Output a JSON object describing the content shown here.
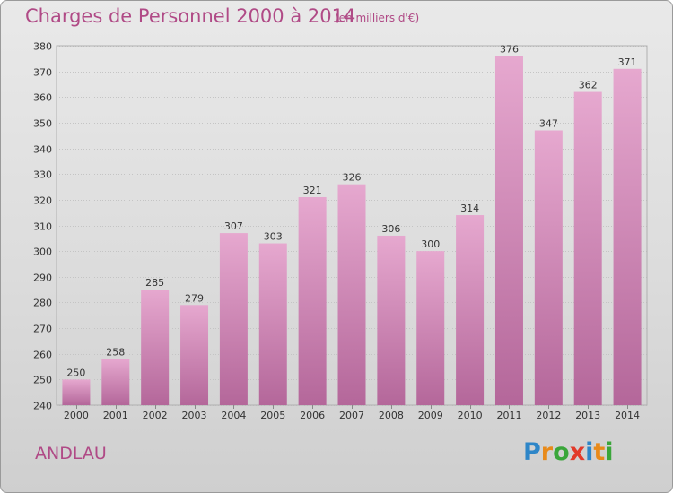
{
  "header": {
    "title": "Charges de Personnel 2000 à 2014",
    "subtitle": "(en milliers d'€)"
  },
  "footer": {
    "place": "ANDLAU",
    "logo": {
      "text": "Proxiti",
      "letters": [
        {
          "ch": "P",
          "color": "#2e86c8"
        },
        {
          "ch": "r",
          "color": "#e88a1a"
        },
        {
          "ch": "o",
          "color": "#3aa63a"
        },
        {
          "ch": "x",
          "color": "#e23a2a"
        },
        {
          "ch": "i",
          "color": "#2e86c8"
        },
        {
          "ch": "t",
          "color": "#e88a1a"
        },
        {
          "ch": "i",
          "color": "#3aa63a"
        }
      ]
    }
  },
  "chart_data": {
    "type": "bar",
    "title": "Charges de Personnel 2000 à 2014",
    "subtitle": "(en milliers d'€)",
    "categories": [
      "2000",
      "2001",
      "2002",
      "2003",
      "2004",
      "2005",
      "2006",
      "2007",
      "2008",
      "2009",
      "2010",
      "2011",
      "2012",
      "2013",
      "2014"
    ],
    "values": [
      250,
      258,
      285,
      279,
      307,
      303,
      321,
      326,
      306,
      300,
      314,
      376,
      347,
      362,
      371
    ],
    "ylim": [
      240,
      380
    ],
    "yticks": [
      240,
      250,
      260,
      270,
      280,
      290,
      300,
      310,
      320,
      330,
      340,
      350,
      360,
      370,
      380
    ],
    "grid": true,
    "bar_color_top": "#e6a8cf",
    "bar_color_bottom": "#b4679a"
  }
}
